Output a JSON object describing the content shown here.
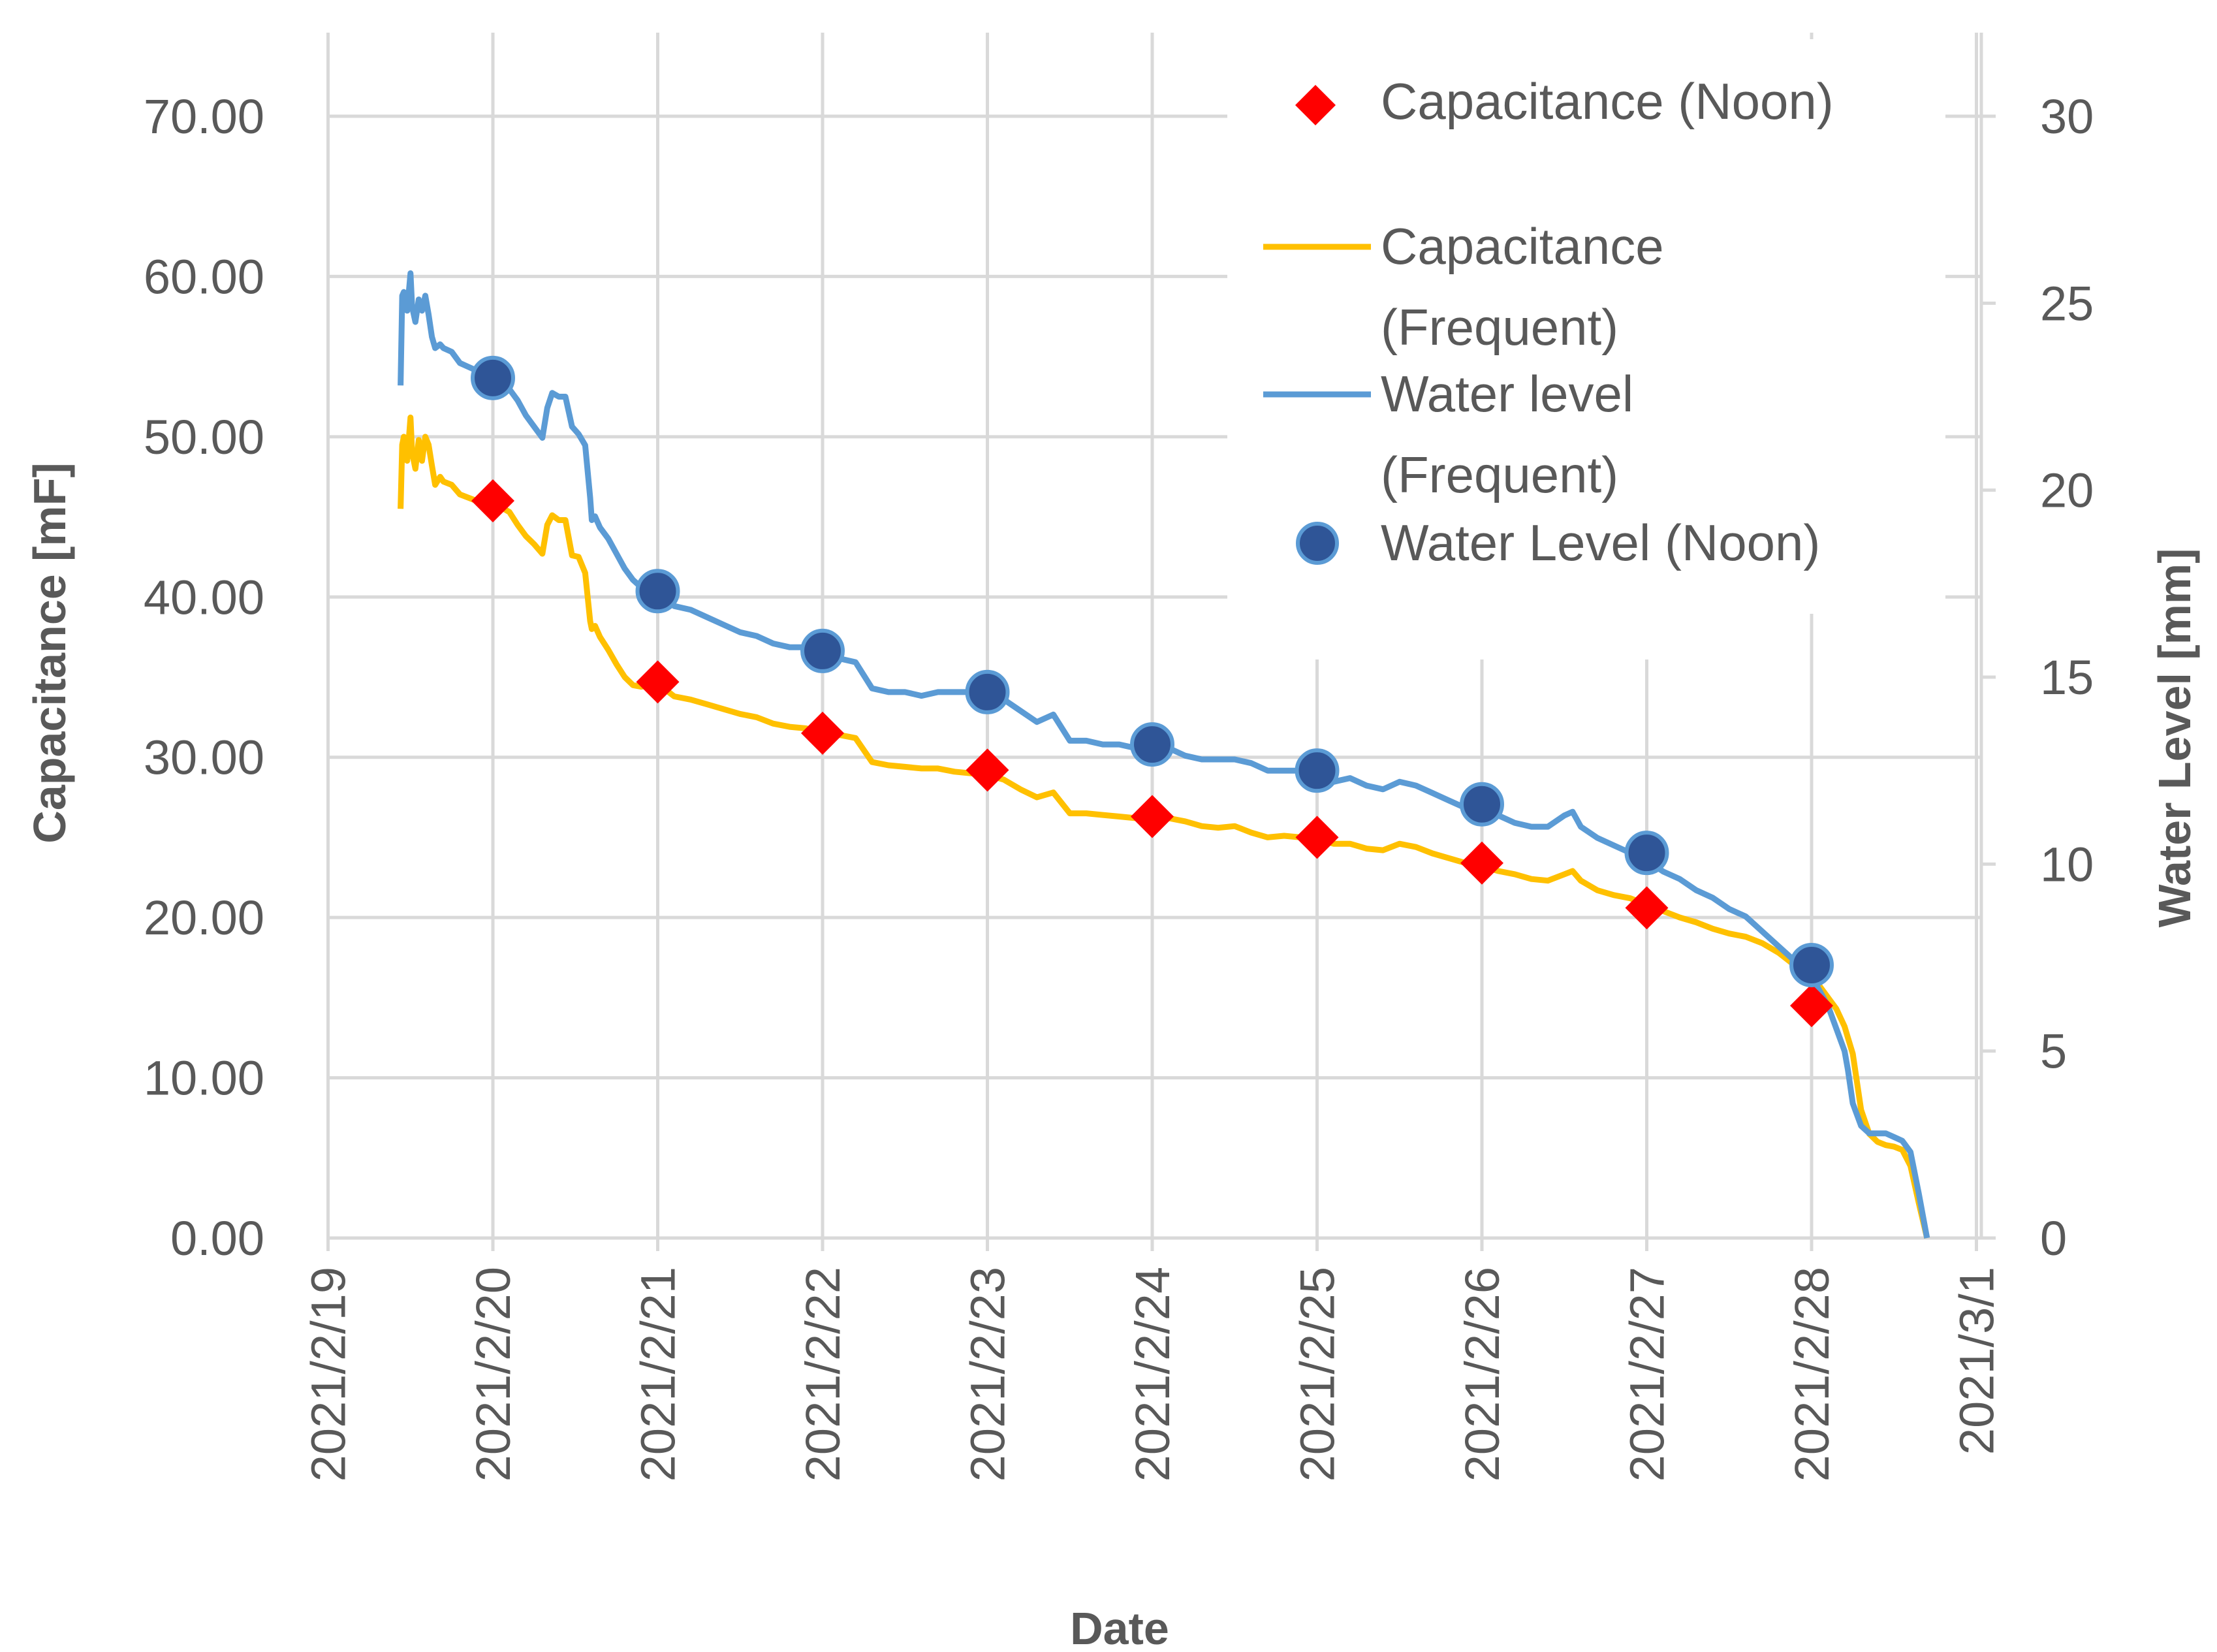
{
  "chart_data": {
    "type": "line",
    "title": "",
    "xlabel": "Date",
    "ylabel_left": "Capacitance [mF]",
    "ylabel_right": "Water Level [mm]",
    "ylim_left": [
      0,
      75
    ],
    "ylim_right": [
      0,
      32.14
    ],
    "xlim_days": [
      -1,
      9.2
    ],
    "left_ticks": [
      "0.00",
      "10.00",
      "20.00",
      "30.00",
      "40.00",
      "50.00",
      "60.00",
      "70.00"
    ],
    "right_ticks": [
      "0",
      "5",
      "10",
      "15",
      "20",
      "25",
      "30"
    ],
    "x_ticks": [
      "2021/2/19",
      "2021/2/20",
      "2021/2/21",
      "2021/2/22",
      "2021/2/23",
      "2021/2/24",
      "2021/2/25",
      "2021/2/26",
      "2021/2/27",
      "2021/2/28",
      "2021/3/1"
    ],
    "colors": {
      "capacitance_line": "#FFC000",
      "water_line": "#5B9BD5",
      "capacitance_marker": "#FF0000",
      "water_marker": "#2F5597",
      "grid": "#D9D9D9",
      "text": "#595959"
    },
    "legend": [
      {
        "key": "cap_noon",
        "label": "Capacitance (Noon)",
        "style": "diamond"
      },
      {
        "key": "cap_freq",
        "label": "Capacitance",
        "label2": "(Frequent)",
        "style": "line"
      },
      {
        "key": "wl_freq",
        "label": "Water level",
        "label2": "(Frequent)",
        "style": "line"
      },
      {
        "key": "wl_noon",
        "label": "Water Level (Noon)",
        "style": "circle"
      }
    ],
    "series": [
      {
        "name": "Capacitance (Frequent)",
        "axis": "left",
        "x": [
          -0.56,
          -0.55,
          -0.54,
          -0.52,
          -0.5,
          -0.49,
          -0.47,
          -0.45,
          -0.43,
          -0.41,
          -0.39,
          -0.37,
          -0.35,
          -0.32,
          -0.3,
          -0.25,
          -0.2,
          -0.15,
          -0.1,
          -0.05,
          0,
          0.05,
          0.1,
          0.15,
          0.2,
          0.25,
          0.3,
          0.33,
          0.36,
          0.4,
          0.44,
          0.48,
          0.52,
          0.56,
          0.59,
          0.6,
          0.62,
          0.65,
          0.7,
          0.75,
          0.8,
          0.85,
          0.9,
          1.0,
          1.1,
          1.2,
          1.3,
          1.4,
          1.5,
          1.6,
          1.7,
          1.8,
          1.9,
          2.0,
          2.1,
          2.2,
          2.3,
          2.4,
          2.5,
          2.6,
          2.7,
          2.8,
          2.9,
          3.0,
          3.1,
          3.2,
          3.3,
          3.4,
          3.5,
          3.6,
          3.7,
          3.8,
          3.9,
          4.0,
          4.1,
          4.2,
          4.3,
          4.4,
          4.5,
          4.6,
          4.7,
          4.8,
          4.9,
          5.0,
          5.1,
          5.2,
          5.3,
          5.4,
          5.5,
          5.6,
          5.7,
          5.8,
          5.9,
          6.0,
          6.1,
          6.2,
          6.3,
          6.4,
          6.5,
          6.55,
          6.6,
          6.7,
          6.8,
          6.9,
          7.0,
          7.1,
          7.2,
          7.3,
          7.4,
          7.5,
          7.6,
          7.7,
          7.8,
          7.9,
          8.0,
          8.05,
          8.1,
          8.15,
          8.2,
          8.22,
          8.25,
          8.3,
          8.35,
          8.4,
          8.45,
          8.5,
          8.55,
          8.6,
          8.65,
          8.7
        ],
        "values": [
          45.5,
          49.5,
          50.0,
          48.5,
          51.2,
          49.0,
          48.0,
          49.8,
          48.5,
          50.0,
          49.5,
          48.2,
          47.0,
          47.5,
          47.2,
          47.0,
          46.4,
          46.2,
          46.0,
          45.8,
          45.7,
          45.6,
          45.3,
          44.5,
          43.8,
          43.3,
          42.7,
          44.5,
          45.1,
          44.8,
          44.8,
          42.6,
          42.5,
          41.5,
          38.5,
          38.0,
          38.2,
          37.5,
          36.7,
          35.8,
          35.0,
          34.5,
          34.4,
          34.6,
          33.8,
          33.6,
          33.3,
          33.0,
          32.7,
          32.5,
          32.1,
          31.9,
          31.8,
          31.5,
          31.4,
          31.2,
          29.7,
          29.5,
          29.4,
          29.3,
          29.3,
          29.1,
          29.0,
          28.9,
          28.6,
          28.0,
          27.5,
          27.8,
          26.5,
          26.5,
          26.4,
          26.3,
          26.2,
          26.4,
          26.2,
          26.0,
          25.7,
          25.6,
          25.7,
          25.3,
          25.0,
          25.1,
          25.0,
          24.9,
          24.6,
          24.6,
          24.3,
          24.2,
          24.6,
          24.4,
          24.0,
          23.7,
          23.4,
          23.2,
          22.9,
          22.7,
          22.4,
          22.3,
          22.7,
          22.9,
          22.3,
          21.7,
          21.4,
          21.2,
          20.8,
          20.4,
          20.0,
          19.7,
          19.3,
          19.0,
          18.8,
          18.4,
          17.8,
          17.0,
          16.3,
          15.7,
          15.0,
          14.3,
          13.2,
          12.5,
          11.5,
          8.0,
          6.5,
          6.0,
          5.8,
          5.7,
          5.5,
          4.5,
          2.2,
          0.0
        ]
      },
      {
        "name": "Water level (Frequent)",
        "axis": "right",
        "x": [
          -0.56,
          -0.55,
          -0.54,
          -0.52,
          -0.5,
          -0.49,
          -0.47,
          -0.45,
          -0.43,
          -0.41,
          -0.39,
          -0.37,
          -0.35,
          -0.32,
          -0.3,
          -0.25,
          -0.2,
          -0.15,
          -0.1,
          -0.05,
          0,
          0.05,
          0.1,
          0.15,
          0.2,
          0.25,
          0.3,
          0.33,
          0.36,
          0.4,
          0.44,
          0.48,
          0.52,
          0.56,
          0.59,
          0.6,
          0.62,
          0.65,
          0.7,
          0.75,
          0.8,
          0.85,
          0.9,
          1.0,
          1.1,
          1.2,
          1.3,
          1.4,
          1.5,
          1.6,
          1.7,
          1.8,
          1.9,
          2.0,
          2.1,
          2.2,
          2.3,
          2.4,
          2.5,
          2.6,
          2.7,
          2.8,
          2.9,
          3.0,
          3.1,
          3.2,
          3.3,
          3.4,
          3.5,
          3.6,
          3.7,
          3.8,
          3.9,
          4.0,
          4.1,
          4.2,
          4.3,
          4.4,
          4.5,
          4.6,
          4.7,
          4.8,
          4.9,
          5.0,
          5.1,
          5.2,
          5.3,
          5.4,
          5.5,
          5.6,
          5.7,
          5.8,
          5.9,
          6.0,
          6.1,
          6.2,
          6.3,
          6.4,
          6.5,
          6.55,
          6.6,
          6.7,
          6.8,
          6.9,
          7.0,
          7.1,
          7.2,
          7.3,
          7.4,
          7.5,
          7.6,
          7.7,
          7.8,
          7.9,
          8.0,
          8.05,
          8.1,
          8.15,
          8.2,
          8.22,
          8.25,
          8.3,
          8.35,
          8.4,
          8.45,
          8.5,
          8.55,
          8.6,
          8.65,
          8.7
        ],
        "values": [
          22.8,
          25.2,
          25.3,
          24.8,
          25.8,
          24.9,
          24.5,
          25.1,
          24.8,
          25.2,
          24.7,
          24.1,
          23.8,
          23.9,
          23.8,
          23.7,
          23.4,
          23.3,
          23.2,
          23.1,
          23.0,
          22.9,
          22.7,
          22.4,
          22.0,
          21.7,
          21.4,
          22.2,
          22.6,
          22.5,
          22.5,
          21.7,
          21.5,
          21.2,
          19.8,
          19.2,
          19.3,
          19.0,
          18.7,
          18.3,
          17.9,
          17.6,
          17.4,
          17.2,
          16.9,
          16.8,
          16.6,
          16.4,
          16.2,
          16.1,
          15.9,
          15.8,
          15.8,
          15.6,
          15.5,
          15.4,
          14.7,
          14.6,
          14.6,
          14.5,
          14.6,
          14.6,
          14.6,
          14.5,
          14.4,
          14.1,
          13.8,
          14.0,
          13.3,
          13.3,
          13.2,
          13.2,
          13.1,
          13.1,
          13.1,
          12.9,
          12.8,
          12.8,
          12.8,
          12.7,
          12.5,
          12.5,
          12.5,
          12.4,
          12.2,
          12.3,
          12.1,
          12.0,
          12.2,
          12.1,
          11.9,
          11.7,
          11.5,
          11.4,
          11.3,
          11.1,
          11.0,
          11.0,
          11.3,
          11.4,
          11.0,
          10.7,
          10.5,
          10.3,
          10.1,
          9.8,
          9.6,
          9.3,
          9.1,
          8.8,
          8.6,
          8.2,
          7.8,
          7.4,
          7.0,
          6.6,
          6.2,
          5.6,
          5.0,
          4.5,
          3.6,
          3.0,
          2.8,
          2.8,
          2.8,
          2.7,
          2.6,
          2.3,
          1.2,
          0.0
        ]
      },
      {
        "name": "Capacitance (Noon)",
        "axis": "left",
        "marker": "diamond",
        "x": [
          0,
          1,
          2,
          3,
          4,
          5,
          6,
          7,
          8
        ],
        "values": [
          46.0,
          34.7,
          31.5,
          29.2,
          26.3,
          25.0,
          23.4,
          20.6,
          14.5
        ]
      },
      {
        "name": "Water Level (Noon)",
        "axis": "right",
        "marker": "circle",
        "x": [
          0,
          1,
          2,
          3,
          4,
          5,
          6,
          7,
          8
        ],
        "values": [
          23.0,
          17.3,
          15.7,
          14.6,
          13.2,
          12.5,
          11.6,
          10.3,
          7.3
        ]
      }
    ]
  }
}
